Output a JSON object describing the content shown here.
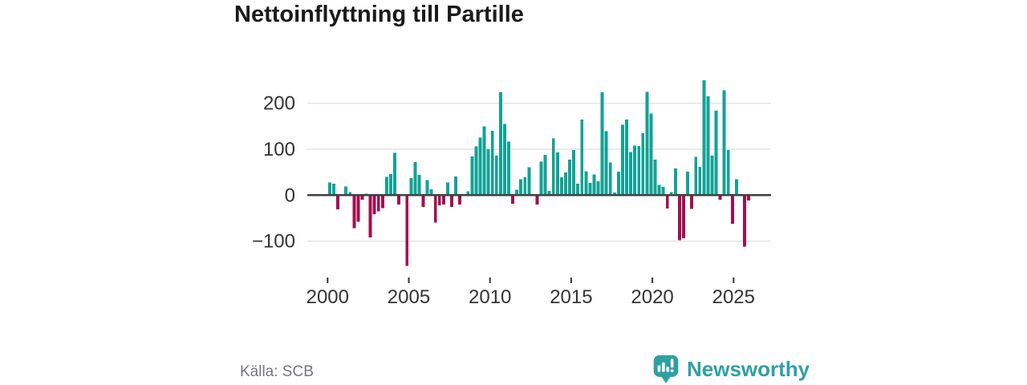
{
  "title": "Nettoinflyttning till Partille",
  "source": "Källa: SCB",
  "branding": {
    "name": "Newsworthy"
  },
  "colors": {
    "positive": "#12a296",
    "negative": "#a40e50",
    "axis": "#404040",
    "grid": "#e3e3e3",
    "tick_text": "#333333",
    "title_text": "#1a1a1a",
    "muted_text": "#76767f",
    "brand": "#2fa0a2"
  },
  "chart_data": {
    "type": "bar",
    "title": "Nettoinflyttning till Partille",
    "xlabel": "",
    "ylabel": "",
    "frequency": "quarterly",
    "start_period": "2000-Q1",
    "end_period": "2025-Q4",
    "x_tick_labels": [
      "2000",
      "2005",
      "2010",
      "2015",
      "2020",
      "2025"
    ],
    "y_ticks": [
      200,
      100,
      0,
      -100
    ],
    "y_tick_labels": [
      "200",
      "100",
      "0",
      "−100"
    ],
    "ylim": [
      -170,
      280
    ],
    "grid": true,
    "legend": false,
    "positive_color_meaning": "net in-migration",
    "negative_color_meaning": "net out-migration",
    "values": [
      28,
      25,
      -31,
      0,
      19,
      7,
      -72,
      -58,
      -10,
      3,
      -92,
      -41,
      -35,
      -28,
      40,
      46,
      92,
      -20,
      0,
      -154,
      37,
      72,
      44,
      -26,
      33,
      13,
      -60,
      -22,
      -20,
      28,
      -26,
      41,
      -20,
      0,
      8,
      84,
      106,
      125,
      150,
      100,
      140,
      86,
      224,
      155,
      117,
      -19,
      12,
      35,
      39,
      61,
      0,
      -20,
      73,
      88,
      9,
      124,
      93,
      39,
      49,
      77,
      98,
      25,
      165,
      52,
      27,
      45,
      30,
      224,
      139,
      71,
      6,
      51,
      153,
      165,
      94,
      108,
      107,
      135,
      225,
      178,
      77,
      22,
      18,
      -29,
      7,
      58,
      -98,
      -94,
      51,
      -30,
      83,
      62,
      250,
      215,
      86,
      184,
      -10,
      228,
      98,
      -62,
      35,
      0,
      -112,
      -12
    ]
  }
}
